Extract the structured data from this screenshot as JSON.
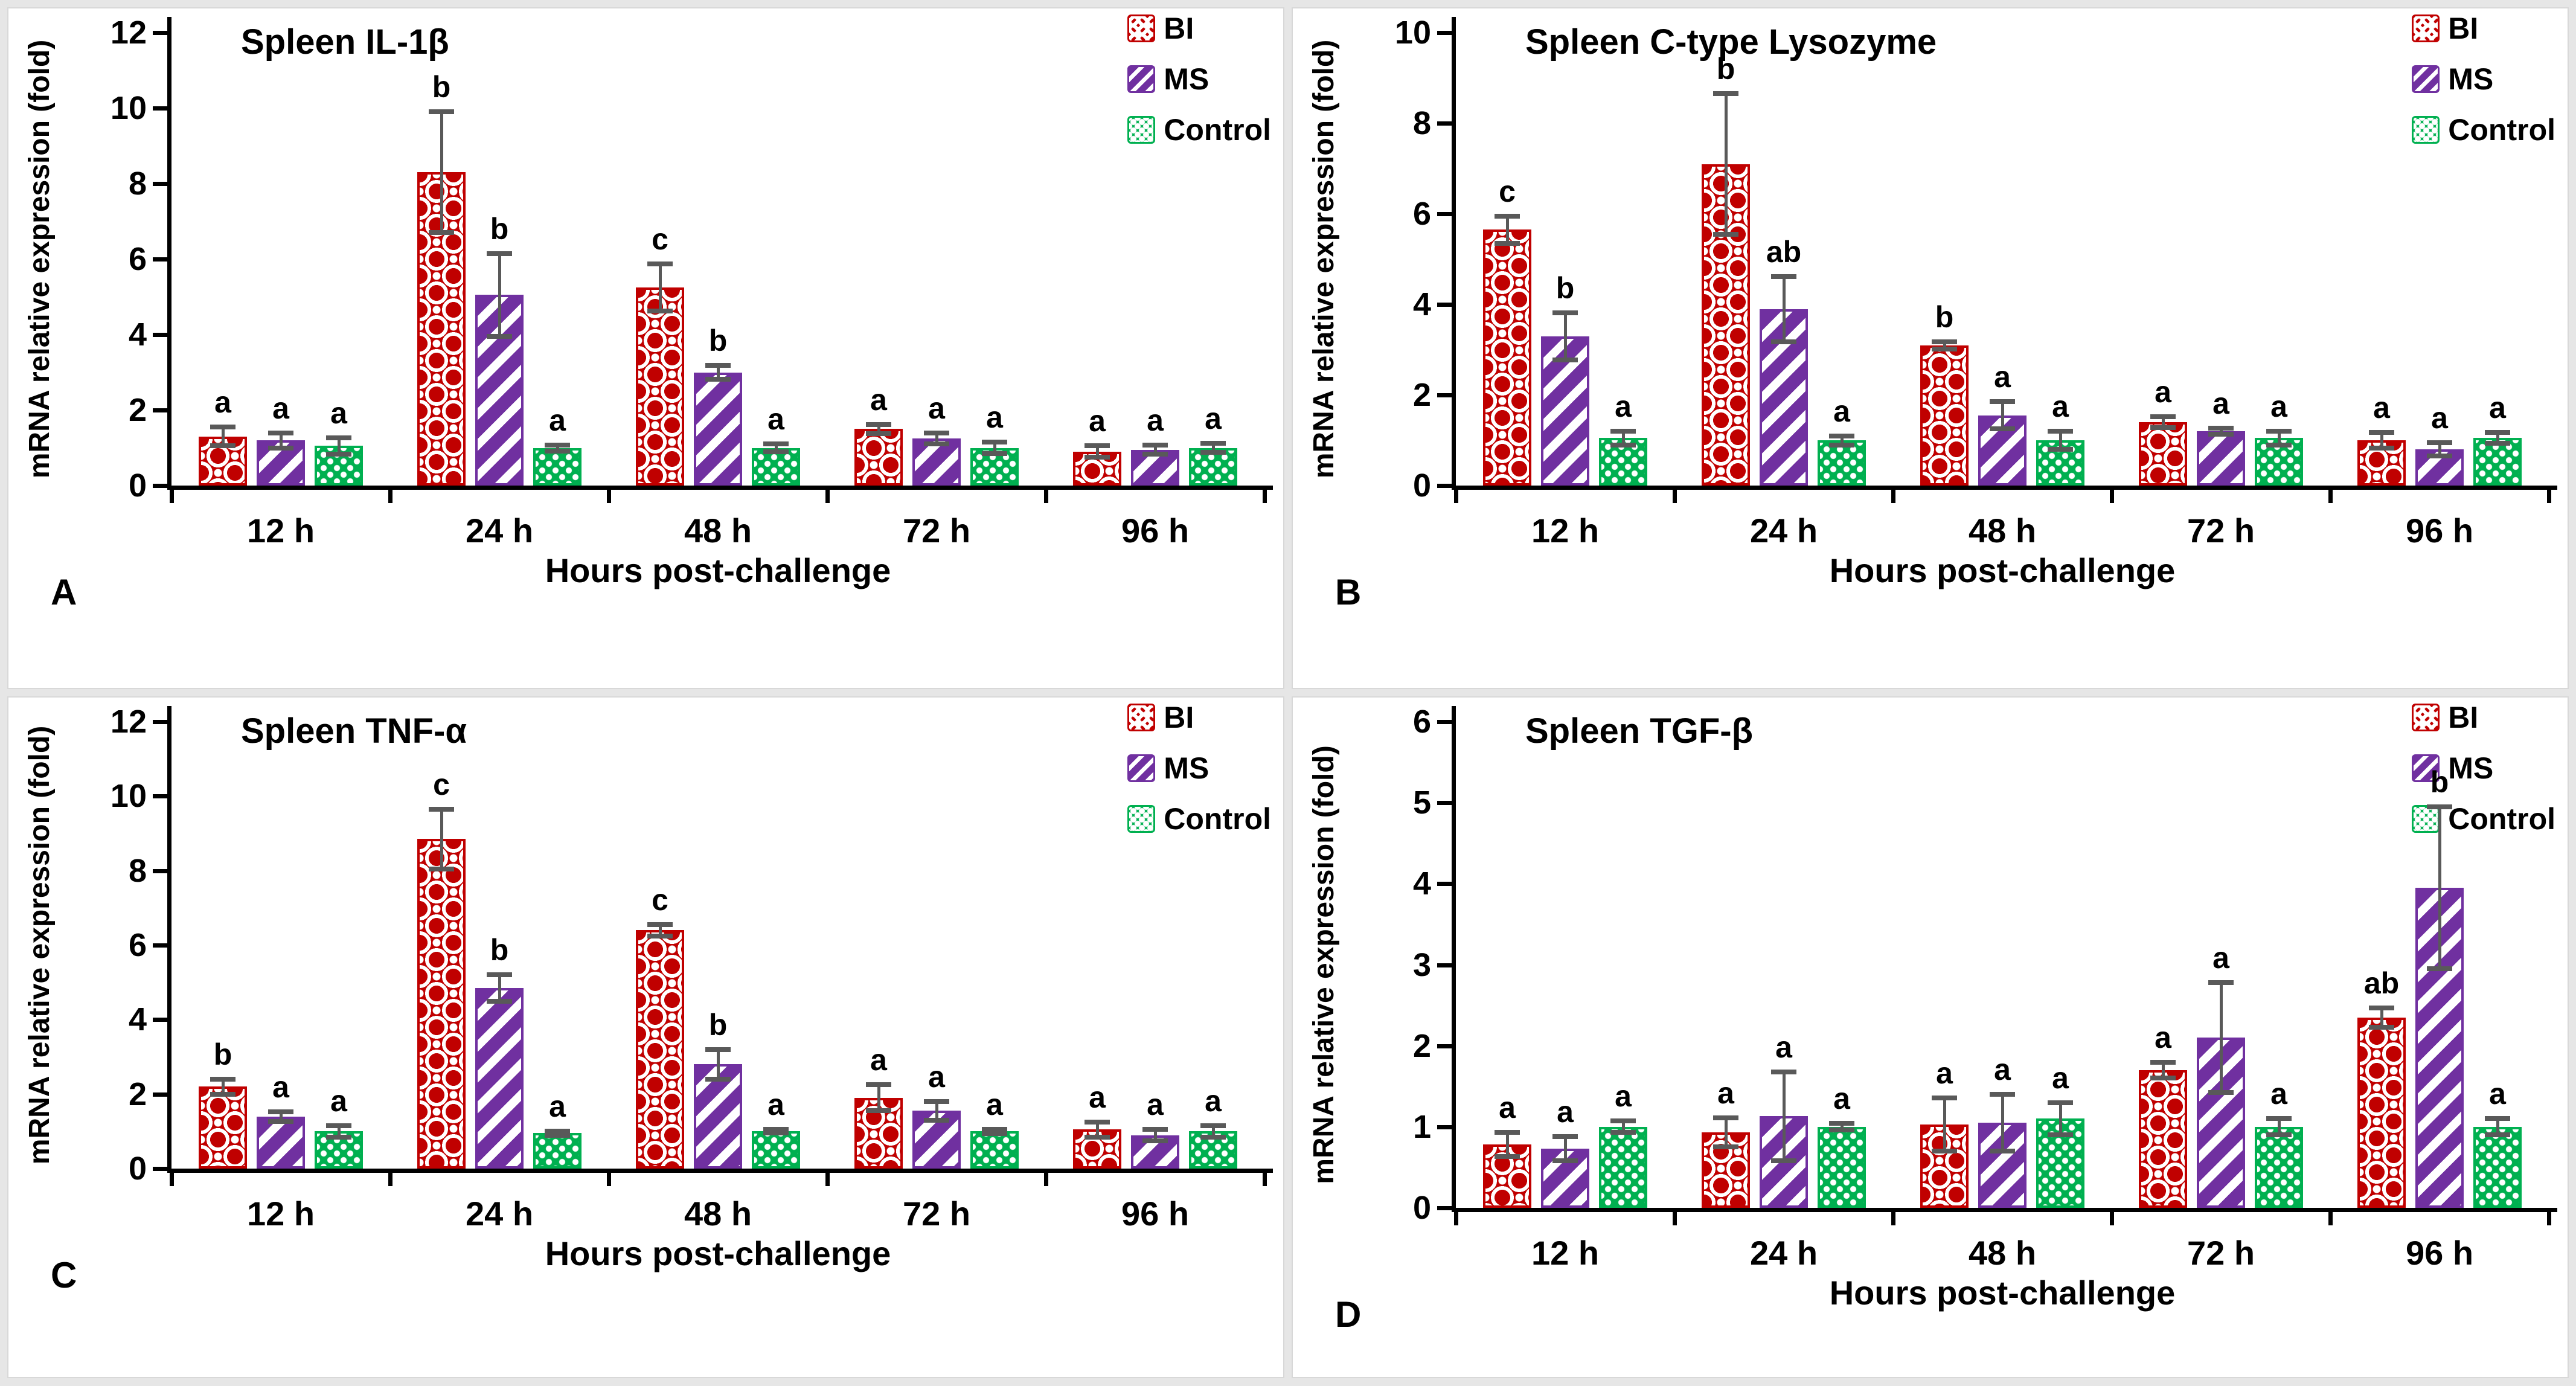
{
  "figure": {
    "background": "#e6e6e6",
    "panel_background": "#ffffff",
    "axis_color": "#000000",
    "error_bar_color": "#595959",
    "ylabel": "mRNA relative expression (fold)",
    "xlabel": "Hours post-challenge",
    "categories": [
      "12 h",
      "24 h",
      "48 h",
      "72 h",
      "96 h"
    ],
    "legend": [
      {
        "name": "BI",
        "color": "#C00000",
        "pattern": "red-circle-lattice"
      },
      {
        "name": "MS",
        "color": "#7030A0",
        "pattern": "purple-diagonal-stripes"
      },
      {
        "name": "Control",
        "color": "#00B050",
        "pattern": "green-dots"
      }
    ],
    "legend_position": "top-right"
  },
  "chart_data": [
    {
      "panel": "A",
      "type": "bar",
      "title": "Spleen IL-1β",
      "ylabel": "mRNA relative expression (fold)",
      "xlabel": "Hours post-challenge",
      "ylim": [
        0,
        12
      ],
      "ytick_step": 2,
      "grid": false,
      "categories": [
        "12 h",
        "24 h",
        "48 h",
        "72 h",
        "96 h"
      ],
      "series": [
        {
          "name": "BI",
          "values": [
            1.3,
            8.3,
            5.25,
            1.5,
            0.9
          ],
          "errors": [
            0.25,
            1.6,
            0.62,
            0.12,
            0.15
          ],
          "letters": [
            "a",
            "b",
            "c",
            "a",
            "a"
          ]
        },
        {
          "name": "MS",
          "values": [
            1.2,
            5.05,
            3.0,
            1.25,
            0.95
          ],
          "errors": [
            0.2,
            1.1,
            0.18,
            0.15,
            0.12
          ],
          "letters": [
            "a",
            "b",
            "b",
            "a",
            "a"
          ]
        },
        {
          "name": "Control",
          "values": [
            1.05,
            1.0,
            1.0,
            1.0,
            1.0
          ],
          "errors": [
            0.22,
            0.08,
            0.1,
            0.15,
            0.12
          ],
          "letters": [
            "a",
            "a",
            "a",
            "a",
            "a"
          ]
        }
      ]
    },
    {
      "panel": "B",
      "type": "bar",
      "title": "Spleen C-type Lysozyme",
      "ylabel": "mRNA relative expression (fold)",
      "xlabel": "Hours post-challenge",
      "ylim": [
        0,
        10
      ],
      "ytick_step": 2,
      "grid": false,
      "categories": [
        "12 h",
        "24 h",
        "48 h",
        "72 h",
        "96 h"
      ],
      "series": [
        {
          "name": "BI",
          "values": [
            5.65,
            7.1,
            3.1,
            1.4,
            1.0
          ],
          "errors": [
            0.3,
            1.55,
            0.08,
            0.12,
            0.17
          ],
          "letters": [
            "c",
            "b",
            "b",
            "a",
            "a"
          ]
        },
        {
          "name": "MS",
          "values": [
            3.3,
            3.9,
            1.55,
            1.2,
            0.8
          ],
          "errors": [
            0.52,
            0.72,
            0.3,
            0.07,
            0.15
          ],
          "letters": [
            "b",
            "ab",
            "a",
            "a",
            "a"
          ]
        },
        {
          "name": "Control",
          "values": [
            1.05,
            1.0,
            1.0,
            1.05,
            1.05
          ],
          "errors": [
            0.15,
            0.1,
            0.2,
            0.15,
            0.12
          ],
          "letters": [
            "a",
            "a",
            "a",
            "a",
            "a"
          ]
        }
      ]
    },
    {
      "panel": "C",
      "type": "bar",
      "title": "Spleen TNF-α",
      "ylabel": "mRNA relative expression (fold)",
      "xlabel": "Hours post-challenge",
      "ylim": [
        0,
        12
      ],
      "ytick_step": 2,
      "grid": false,
      "categories": [
        "12 h",
        "24 h",
        "48 h",
        "72 h",
        "96 h"
      ],
      "series": [
        {
          "name": "BI",
          "values": [
            2.2,
            8.85,
            6.4,
            1.9,
            1.05
          ],
          "errors": [
            0.2,
            0.8,
            0.15,
            0.35,
            0.2
          ],
          "letters": [
            "b",
            "c",
            "c",
            "a",
            "a"
          ]
        },
        {
          "name": "MS",
          "values": [
            1.4,
            4.85,
            2.8,
            1.55,
            0.9
          ],
          "errors": [
            0.13,
            0.35,
            0.4,
            0.25,
            0.15
          ],
          "letters": [
            "a",
            "b",
            "b",
            "a",
            "a"
          ]
        },
        {
          "name": "Control",
          "values": [
            1.0,
            0.95,
            1.0,
            1.0,
            1.0
          ],
          "errors": [
            0.15,
            0.05,
            0.05,
            0.06,
            0.15
          ],
          "letters": [
            "a",
            "a",
            "a",
            "a",
            "a"
          ]
        }
      ]
    },
    {
      "panel": "D",
      "type": "bar",
      "title": "Spleen TGF-β",
      "ylabel": "mRNA relative expression (fold)",
      "xlabel": "Hours post-challenge",
      "ylim": [
        0,
        6
      ],
      "ytick_step": 1,
      "grid": false,
      "categories": [
        "12 h",
        "24 h",
        "48 h",
        "72 h",
        "96 h"
      ],
      "series": [
        {
          "name": "BI",
          "values": [
            0.78,
            0.93,
            1.03,
            1.7,
            2.35
          ],
          "errors": [
            0.15,
            0.18,
            0.33,
            0.1,
            0.12
          ],
          "letters": [
            "a",
            "a",
            "a",
            "a",
            "ab"
          ]
        },
        {
          "name": "MS",
          "values": [
            0.73,
            1.13,
            1.05,
            2.1,
            3.95
          ],
          "errors": [
            0.15,
            0.55,
            0.35,
            0.68,
            1.0
          ],
          "letters": [
            "a",
            "a",
            "a",
            "a",
            "b"
          ]
        },
        {
          "name": "Control",
          "values": [
            1.0,
            1.0,
            1.1,
            1.0,
            1.0
          ],
          "errors": [
            0.07,
            0.04,
            0.2,
            0.1,
            0.1
          ],
          "letters": [
            "a",
            "a",
            "a",
            "a",
            "a"
          ]
        }
      ]
    }
  ]
}
